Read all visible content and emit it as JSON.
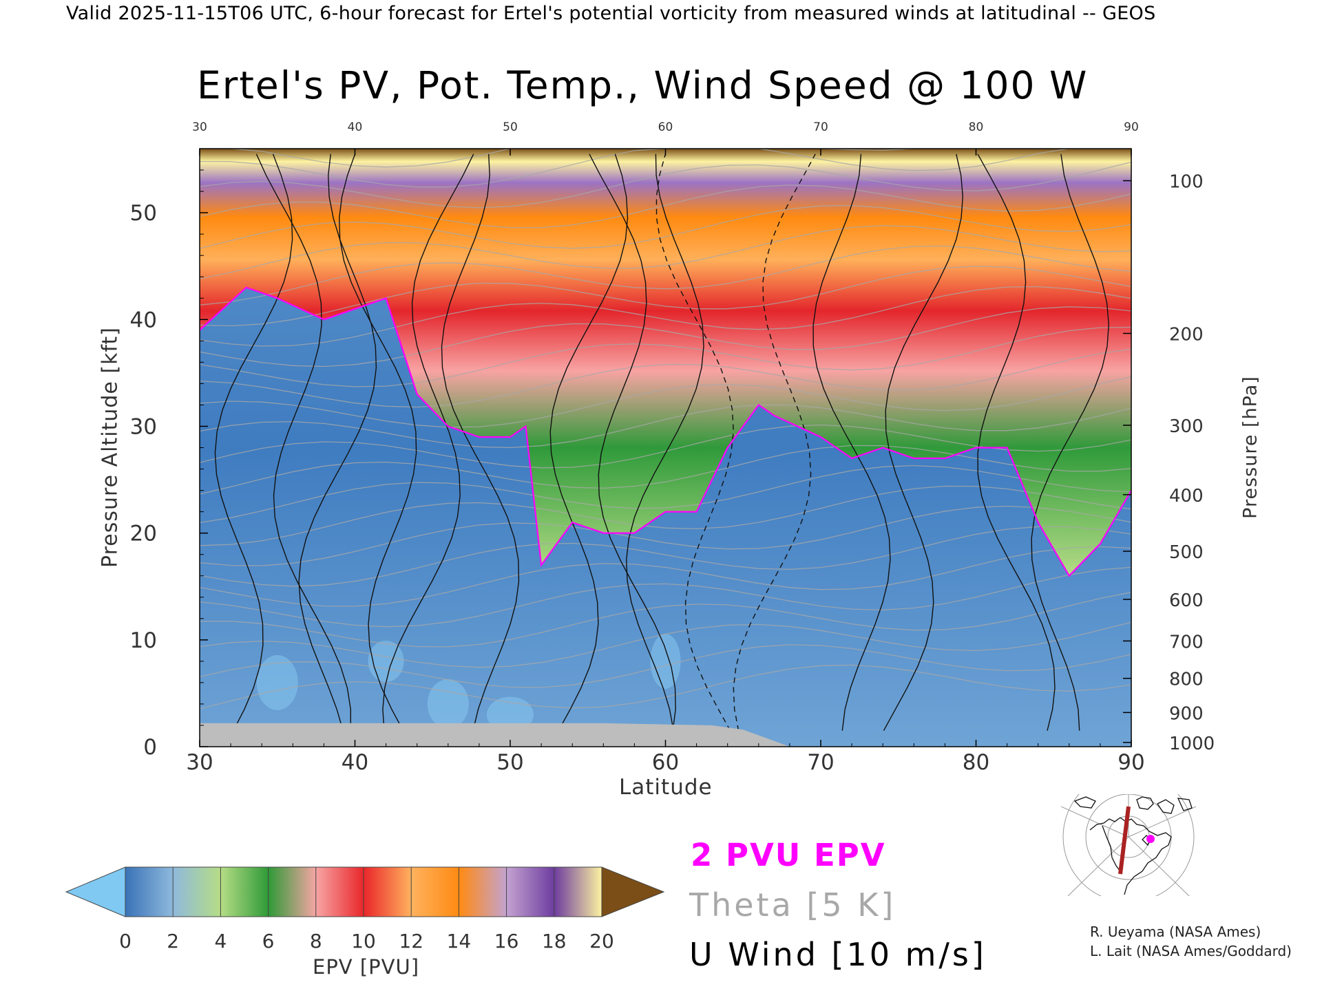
{
  "header": "Valid 2025-11-15T06 UTC, 6-hour forecast for Ertel's potential vorticity from measured winds at latitudinal -- GEOS",
  "chart_data": {
    "type": "heatmap",
    "title": "Ertel's PV, Pot. Temp., Wind Speed @ 100 W",
    "xlabel": "Latitude",
    "ylabel": "Pressure Altitude [kft]",
    "y2label": "Pressure [hPa]",
    "xlim": [
      30,
      90
    ],
    "ylim": [
      0,
      56
    ],
    "x_ticks": [
      30,
      40,
      50,
      60,
      70,
      80,
      90
    ],
    "y_ticks": [
      0,
      10,
      20,
      30,
      40,
      50
    ],
    "pressure_ticks": [
      {
        "label": "100",
        "kft": 53.0
      },
      {
        "label": "200",
        "kft": 38.7
      },
      {
        "label": "300",
        "kft": 30.1
      },
      {
        "label": "400",
        "kft": 23.6
      },
      {
        "label": "500",
        "kft": 18.3
      },
      {
        "label": "600",
        "kft": 13.8
      },
      {
        "label": "700",
        "kft": 9.9
      },
      {
        "label": "800",
        "kft": 6.4
      },
      {
        "label": "900",
        "kft": 3.2
      },
      {
        "label": "1000",
        "kft": 0.4
      }
    ],
    "pv2_tropopause": {
      "lat": [
        30,
        33,
        35,
        38,
        40,
        42,
        44,
        46,
        48,
        50,
        51,
        52,
        54,
        56,
        58,
        60,
        62,
        64,
        66,
        67,
        70,
        72,
        74,
        76,
        78,
        80,
        82,
        84,
        86,
        88,
        90
      ],
      "kft": [
        39,
        43,
        42,
        40,
        41,
        42,
        33,
        30,
        29,
        29,
        30,
        17,
        21,
        20,
        20,
        22,
        22,
        28,
        32,
        31,
        29,
        27,
        28,
        27,
        27,
        28,
        28,
        21,
        16,
        19,
        24
      ]
    },
    "terrain_kft": {
      "lat": [
        30,
        40,
        56,
        63,
        65,
        68,
        90
      ],
      "kft": [
        2.2,
        2.2,
        2.2,
        2.0,
        1.6,
        0.0,
        0.0
      ]
    },
    "colorbar": {
      "label": "EPV [PVU]",
      "ticks": [
        "0",
        "2",
        "4",
        "6",
        "8",
        "10",
        "12",
        "14",
        "16",
        "18",
        "20"
      ],
      "colors": [
        "#3a73b8",
        "#8fb9dc",
        "#b6dd85",
        "#2e9a37",
        "#f7a5a5",
        "#e9262a",
        "#ffb25f",
        "#ff8a12",
        "#c3a3d1",
        "#6d3c9f",
        "#fdf3a1"
      ],
      "under_color": "#7fc9f3",
      "over_color": "#7a4e16"
    },
    "legend": [
      {
        "text": "2 PVU EPV",
        "color": "#ff00ff"
      },
      {
        "text": "Theta [5 K]",
        "color": "#a8a8a8"
      },
      {
        "text": "U Wind [10 m/s]",
        "color": "#000000"
      }
    ]
  },
  "credits": [
    "R. Ueyama (NASA Ames)",
    "L. Lait (NASA Ames/Goddard)"
  ]
}
